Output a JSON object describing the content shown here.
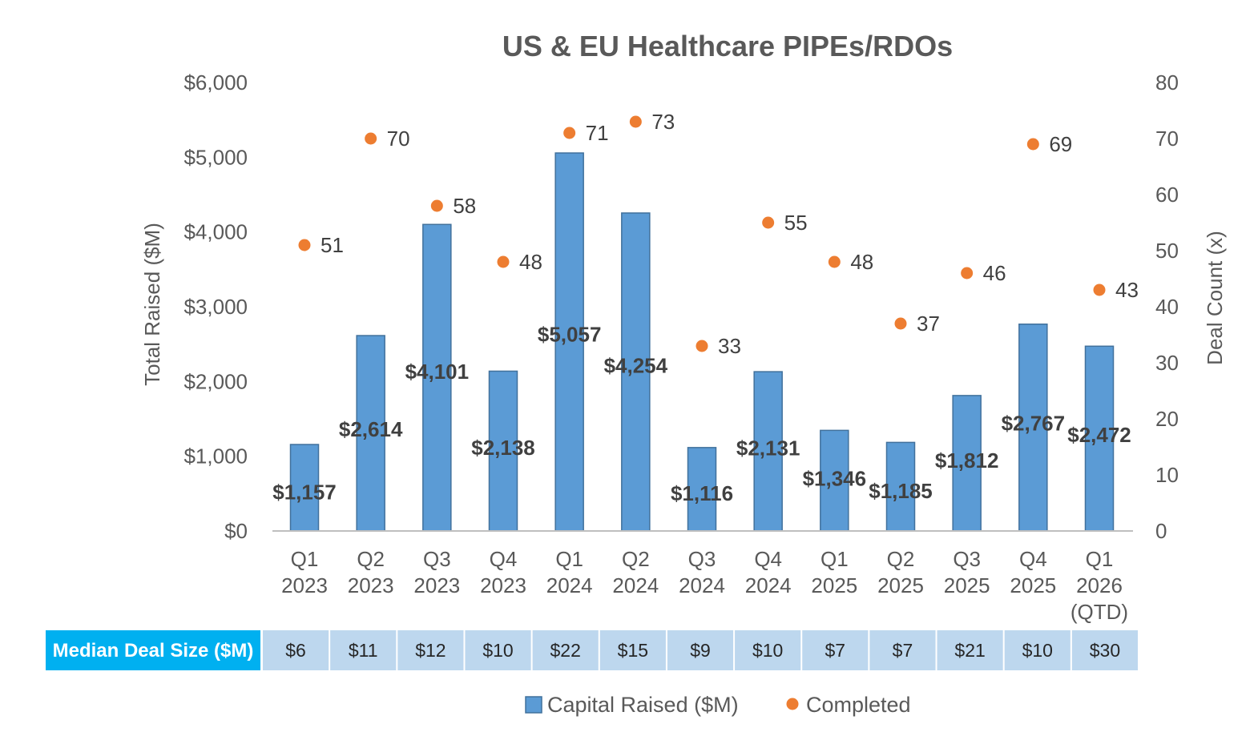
{
  "chart_data": {
    "type": "bar",
    "title": "US & EU Healthcare PIPEs/RDOs",
    "categories": [
      [
        "Q1",
        "2023"
      ],
      [
        "Q2",
        "2023"
      ],
      [
        "Q3",
        "2023"
      ],
      [
        "Q4",
        "2023"
      ],
      [
        "Q1",
        "2024"
      ],
      [
        "Q2",
        "2024"
      ],
      [
        "Q3",
        "2024"
      ],
      [
        "Q4",
        "2024"
      ],
      [
        "Q1",
        "2025"
      ],
      [
        "Q2",
        "2025"
      ],
      [
        "Q3",
        "2025"
      ],
      [
        "Q4",
        "2025"
      ],
      [
        "Q1",
        "2026",
        "(QTD)"
      ]
    ],
    "series": [
      {
        "name": "Capital Raised ($M)",
        "type": "bar",
        "axis": "left",
        "values": [
          1157,
          2614,
          4101,
          2138,
          5057,
          4254,
          1116,
          2131,
          1346,
          1185,
          1812,
          2767,
          2472
        ],
        "labels": [
          "$1,157",
          "$2,614",
          "$4,101",
          "$2,138",
          "$5,057",
          "$4,254",
          "$1,116",
          "$2,131",
          "$1,346",
          "$1,185",
          "$1,812",
          "$2,767",
          "$2,472"
        ]
      },
      {
        "name": "Completed",
        "type": "scatter",
        "axis": "right",
        "values": [
          51,
          70,
          58,
          48,
          71,
          73,
          33,
          55,
          48,
          37,
          46,
          69,
          43
        ],
        "labels": [
          "51",
          "70",
          "58",
          "48",
          "71",
          "73",
          "33",
          "55",
          "48",
          "37",
          "46",
          "69",
          "43"
        ]
      }
    ],
    "y_left": {
      "label": "Total Raised ($M)",
      "min": 0,
      "max": 6000,
      "ticks": [
        0,
        1000,
        2000,
        3000,
        4000,
        5000,
        6000
      ],
      "tick_labels": [
        "$0",
        "$1,000",
        "$2,000",
        "$3,000",
        "$4,000",
        "$5,000",
        "$6,000"
      ]
    },
    "y_right": {
      "label": "Deal Count (x)",
      "min": 0,
      "max": 80,
      "ticks": [
        0,
        10,
        20,
        30,
        40,
        50,
        60,
        70,
        80
      ],
      "tick_labels": [
        "0",
        "10",
        "20",
        "30",
        "40",
        "50",
        "60",
        "70",
        "80"
      ]
    },
    "median_table": {
      "header": "Median Deal Size ($M)",
      "values": [
        "$6",
        "$11",
        "$12",
        "$10",
        "$22",
        "$15",
        "$9",
        "$10",
        "$7",
        "$7",
        "$21",
        "$10",
        "$30"
      ]
    },
    "legend": {
      "position": "bottom-center",
      "entries": [
        "Capital Raised ($M)",
        "Completed"
      ]
    },
    "grid": false
  },
  "colors": {
    "bar_fill": "#5B9BD5",
    "bar_stroke": "#41719C",
    "dot": "#ED7D31",
    "axis_line": "#BFBFBF",
    "median_header_bg": "#00B0F0",
    "median_cell_bg": "#BDD7EE",
    "text_dark": "#404040",
    "text_muted": "#595959"
  }
}
